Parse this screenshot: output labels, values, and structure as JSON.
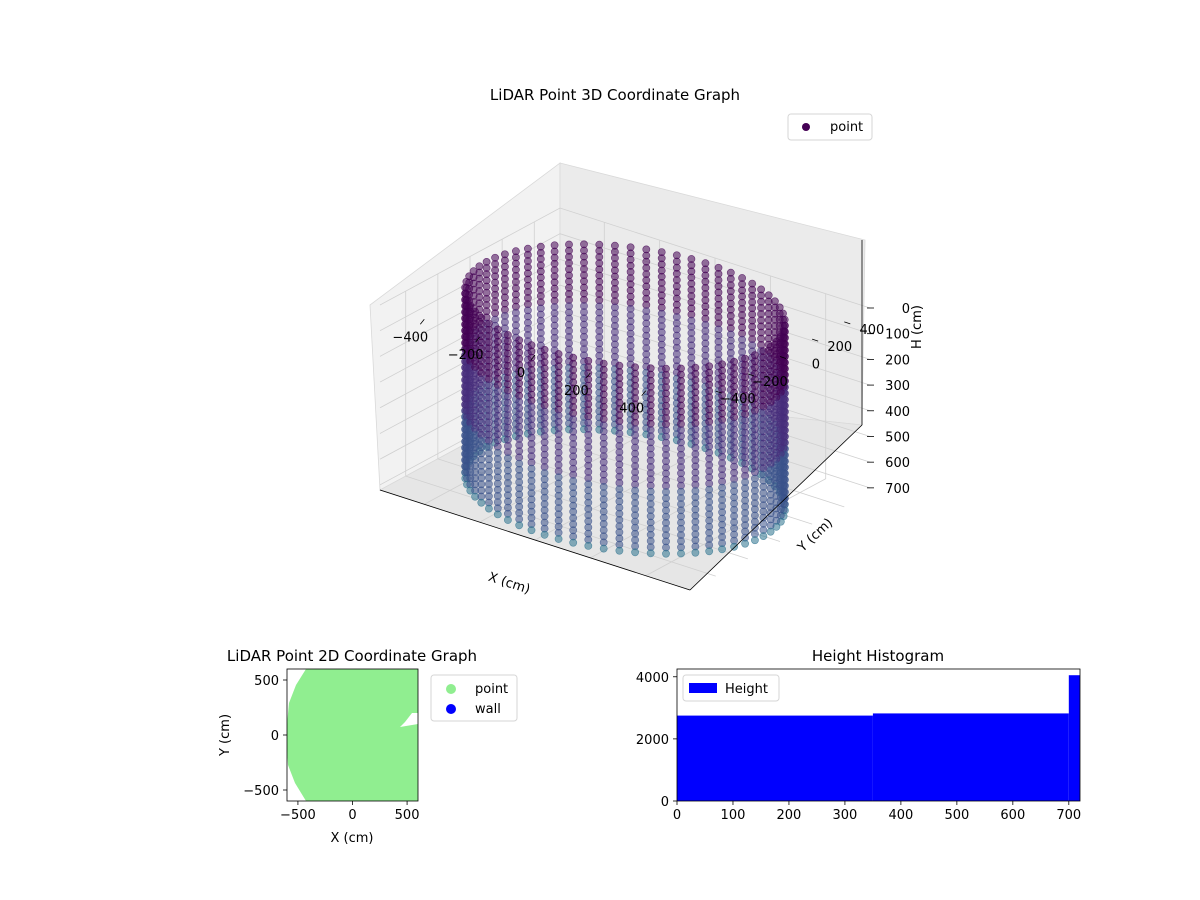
{
  "chart_data": [
    {
      "type": "scatter",
      "projection": "3d",
      "title": "LiDAR Point 3D Coordinate Graph",
      "xlabel": "X (cm)",
      "ylabel": "Y (cm)",
      "zlabel": "H (cm)",
      "x_ticks": [
        "−400",
        "−200",
        "0",
        "200",
        "400"
      ],
      "y_ticks": [
        "−400",
        "−200",
        "0",
        "200",
        "400"
      ],
      "z_ticks": [
        "0",
        "100",
        "200",
        "300",
        "400",
        "500",
        "600",
        "700"
      ],
      "xlim": [
        -560,
        560
      ],
      "ylim": [
        -560,
        560
      ],
      "zlim": [
        0,
        720
      ],
      "z_inverted": true,
      "legend": {
        "placement": "top-right",
        "entries": [
          {
            "label": "point",
            "color": "#440154"
          }
        ]
      },
      "series": [
        {
          "name": "point",
          "shape": "cylindrical wall",
          "radius": 500,
          "height_range": [
            0,
            720
          ],
          "colormap": "viridis",
          "color_top": "#440154",
          "color_bottom": "#3b528b"
        }
      ]
    },
    {
      "type": "scatter",
      "title": "LiDAR Point 2D Coordinate Graph",
      "xlabel": "X (cm)",
      "ylabel": "Y (cm)",
      "x_ticks": [
        "−500",
        "0",
        "500"
      ],
      "y_ticks": [
        "−500",
        "0",
        "500"
      ],
      "xlim": [
        -600,
        600
      ],
      "ylim": [
        -600,
        600
      ],
      "legend": {
        "placement": "outside-right",
        "entries": [
          {
            "label": "point",
            "color": "#90ee90"
          },
          {
            "label": "wall",
            "color": "#0000ff"
          }
        ]
      },
      "series": [
        {
          "name": "point",
          "color": "#90ee90",
          "shape": "filled disk",
          "radius": 600
        },
        {
          "name": "wall",
          "color": "#0000ff",
          "points": []
        }
      ]
    },
    {
      "type": "bar",
      "subtype": "histogram",
      "title": "Height Histogram",
      "xlabel": "",
      "ylabel": "",
      "x_ticks": [
        "0",
        "100",
        "200",
        "300",
        "400",
        "500",
        "600",
        "700"
      ],
      "y_ticks": [
        "0",
        "2000",
        "4000"
      ],
      "xlim": [
        0,
        720
      ],
      "ylim": [
        0,
        4250
      ],
      "color": "#0000ff",
      "legend": {
        "placement": "top-left",
        "entries": [
          {
            "label": "Height",
            "color": "#0000ff"
          }
        ]
      },
      "bins": [
        {
          "from": 0,
          "to": 350,
          "count": 2750
        },
        {
          "from": 350,
          "to": 700,
          "count": 2820
        },
        {
          "from": 700,
          "to": 720,
          "count": 4050
        }
      ]
    }
  ]
}
